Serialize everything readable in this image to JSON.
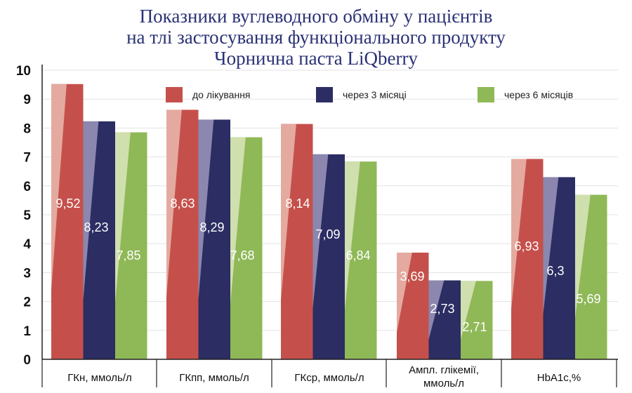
{
  "title": {
    "line1": "Показники вуглеводного обміну у пацієнтів",
    "line2": "на тлі застосування функціонального продукту",
    "line3": "Чорнична паста LiQberry"
  },
  "colors": {
    "series": [
      "#c5504b",
      "#2b2d63",
      "#8fb857"
    ],
    "series_light": [
      "#e4aa9f",
      "#8b87ae",
      "#cfdfae"
    ],
    "grid": "#e3e3e3",
    "axis": "#222222"
  },
  "chart_data": {
    "type": "bar",
    "title": "Показники вуглеводного обміну у пацієнтів на тлі застосування функціонального продукту Чорнична паста LiQberry",
    "categories": [
      "ГКн, ммоль/л",
      "ГКпп, ммоль/л",
      "ГКср, ммоль/л",
      "Ампл. глікемії, ммоль/л",
      "HbA1c,%"
    ],
    "series": [
      {
        "name": "до лікування",
        "values": [
          9.52,
          8.63,
          8.14,
          3.69,
          6.93
        ],
        "labels": [
          "9,52",
          "8,63",
          "8,14",
          "3,69",
          "6,93"
        ]
      },
      {
        "name": "через 3 місяці",
        "values": [
          8.23,
          8.29,
          7.09,
          2.73,
          6.3
        ],
        "labels": [
          "8,23",
          "8,29",
          "7,09",
          "2,73",
          "6,3"
        ]
      },
      {
        "name": "через 6 місяців",
        "values": [
          7.85,
          7.68,
          6.84,
          2.71,
          5.69
        ],
        "labels": [
          "7,85",
          "7,68",
          "6,84",
          "2,71",
          "5,69"
        ]
      }
    ],
    "yticks": [
      0,
      1,
      2,
      3,
      4,
      5,
      6,
      7,
      8,
      9,
      10
    ],
    "ylim": [
      0,
      10
    ],
    "grid": true,
    "legend_position": "top"
  }
}
